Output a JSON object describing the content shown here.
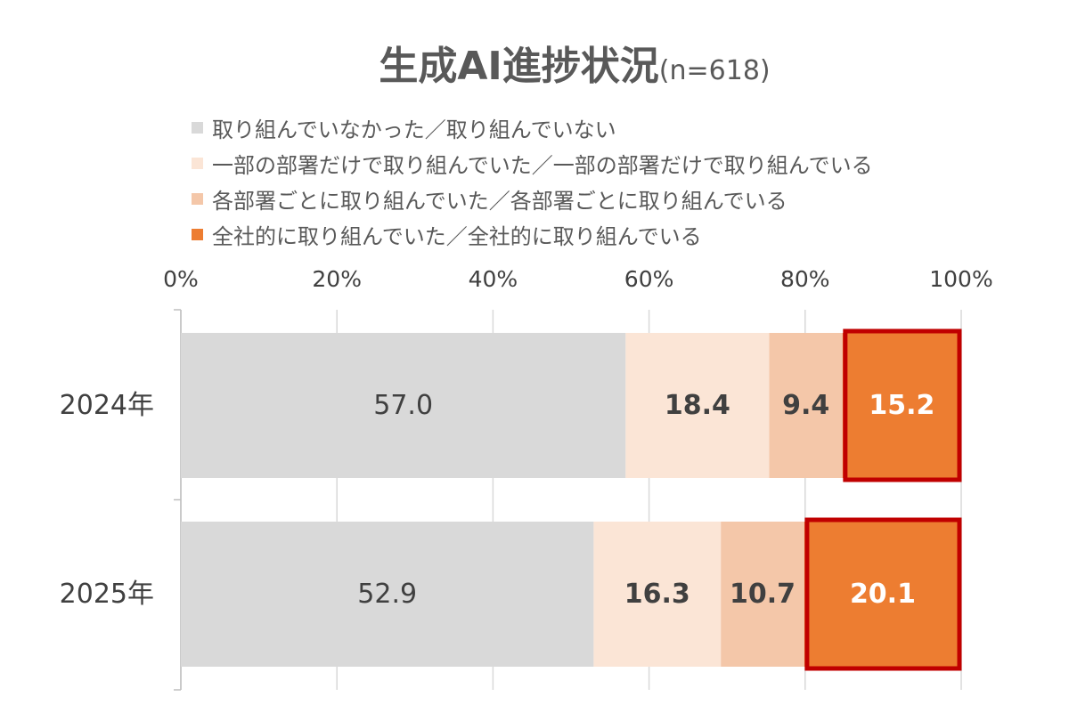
{
  "title": {
    "main": "生成AI進捗状況",
    "sub": "(n=618)"
  },
  "legend": [
    {
      "label": "取り組んでいなかった／取り組んでいない",
      "color": "#d9d9d9"
    },
    {
      "label": "一部の部署だけで取り組んでいた／一部の部署だけで取り組んでいる",
      "color": "#fbe5d6"
    },
    {
      "label": "各部署ごとに取り組んでいた／各部署ごとに取り組んでいる",
      "color": "#f4c7a9"
    },
    {
      "label": "全社的に取り組んでいた／全社的に取り組んでいる",
      "color": "#ed7d31"
    }
  ],
  "chart_data": {
    "type": "bar",
    "orientation": "horizontal",
    "stacked": true,
    "categories": [
      "2024年",
      "2025年"
    ],
    "series": [
      {
        "name": "取り組んでいなかった／取り組んでいない",
        "values": [
          57.0,
          52.9
        ],
        "labels": [
          "57.0",
          "52.9"
        ],
        "color": "#d9d9d9",
        "label_color": "#404040"
      },
      {
        "name": "一部の部署だけで取り組んでいた／一部の部署だけで取り組んでいる",
        "values": [
          18.4,
          16.3
        ],
        "labels": [
          "18.4",
          "16.3"
        ],
        "color": "#fbe5d6",
        "label_color": "#404040"
      },
      {
        "name": "各部署ごとに取り組んでいた／各部署ごとに取り組んでいる",
        "values": [
          9.4,
          10.7
        ],
        "labels": [
          "9.4",
          "10.7"
        ],
        "color": "#f4c7a9",
        "label_color": "#404040"
      },
      {
        "name": "全社的に取り組んでいた／全社的に取り組んでいる",
        "values": [
          15.2,
          20.1
        ],
        "labels": [
          "15.2",
          "20.1"
        ],
        "color": "#ed7d31",
        "label_color": "#ffffff",
        "highlight_border": "#c00000"
      }
    ],
    "xlim": [
      0,
      100
    ],
    "xticks": [
      "0%",
      "20%",
      "40%",
      "60%",
      "80%",
      "100%"
    ],
    "xtick_position": "top",
    "grid": true,
    "legend_position": "top-left"
  }
}
